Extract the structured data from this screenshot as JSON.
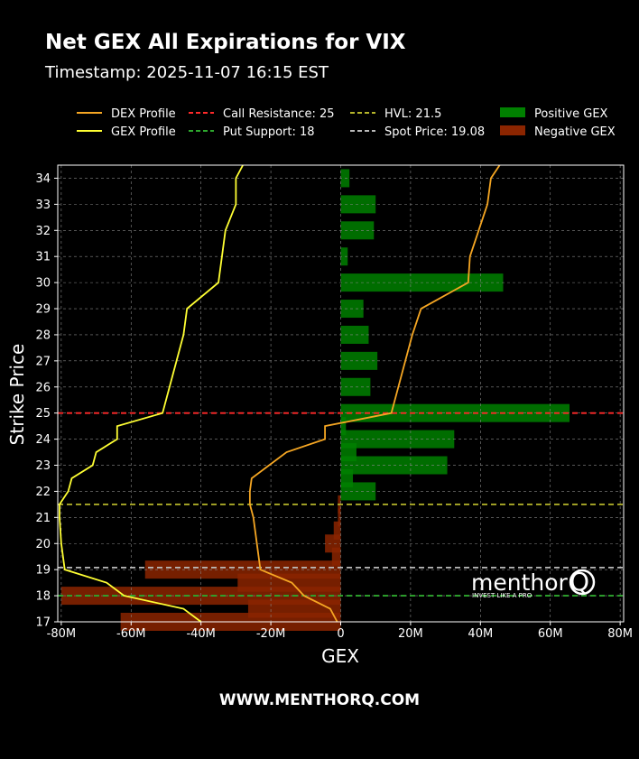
{
  "header": {
    "title": "Net GEX All Expirations for VIX",
    "timestamp": "Timestamp: 2025-11-07 16:15 EST"
  },
  "footer": {
    "url": "WWW.MENTHORQ.COM"
  },
  "logo": {
    "name": "menthor",
    "letter": "Q",
    "tagline": "INVEST LIKE A PRO"
  },
  "colors": {
    "positive": "#008000",
    "negative": "#8b2500",
    "dex": "#f5a623",
    "gex": "#ffff33",
    "call_resistance": "#ff2a2a",
    "put_support": "#2ea82e",
    "hvl": "#b5b52a",
    "spot": "#bbbbbb"
  },
  "chart_data": {
    "type": "bar",
    "orientation": "horizontal",
    "xlabel": "GEX",
    "ylabel": "Strike Price",
    "xlim": [
      -81,
      81
    ],
    "ylim": [
      17,
      34.5
    ],
    "xticks": [
      -80,
      -60,
      -40,
      -20,
      0,
      20,
      40,
      60,
      80
    ],
    "xtick_labels": [
      "-80M",
      "-60M",
      "-40M",
      "-20M",
      "0",
      "20M",
      "40M",
      "60M",
      "80M"
    ],
    "yticks": [
      17,
      18,
      19,
      20,
      21,
      22,
      23,
      24,
      25,
      26,
      27,
      28,
      29,
      30,
      31,
      32,
      33,
      34
    ],
    "grid": true,
    "legend": [
      {
        "label": "DEX Profile",
        "kind": "solid",
        "color": "#f5a623"
      },
      {
        "label": "GEX Profile",
        "kind": "solid",
        "color": "#ffff33"
      },
      {
        "label": "Call Resistance: 25",
        "kind": "dashed",
        "color": "#ff2a2a"
      },
      {
        "label": "Put Support: 18",
        "kind": "dashed",
        "color": "#2ea82e"
      },
      {
        "label": "HVL: 21.5",
        "kind": "dashed",
        "color": "#b5b52a"
      },
      {
        "label": "Spot Price: 19.08",
        "kind": "dashed",
        "color": "#bbbbbb"
      },
      {
        "label": "Positive GEX",
        "kind": "patch",
        "color": "#008000"
      },
      {
        "label": "Negative GEX",
        "kind": "patch",
        "color": "#8b2500"
      }
    ],
    "levels": {
      "call_resistance": 25,
      "put_support": 18,
      "hvl": 21.5,
      "spot": 19.08
    },
    "bars": [
      {
        "strike": 17.0,
        "value": -63
      },
      {
        "strike": 17.5,
        "value": -26.5
      },
      {
        "strike": 18.0,
        "value": -80
      },
      {
        "strike": 18.5,
        "value": -29.5
      },
      {
        "strike": 19.0,
        "value": -56
      },
      {
        "strike": 19.5,
        "value": -2.5
      },
      {
        "strike": 20.0,
        "value": -4.5
      },
      {
        "strike": 20.5,
        "value": -2
      },
      {
        "strike": 21.0,
        "value": -0.8
      },
      {
        "strike": 21.5,
        "value": -0.8
      },
      {
        "strike": 22.0,
        "value": 10
      },
      {
        "strike": 22.5,
        "value": 3.5
      },
      {
        "strike": 23.0,
        "value": 30.5
      },
      {
        "strike": 23.5,
        "value": 4.5
      },
      {
        "strike": 24.0,
        "value": 32.5
      },
      {
        "strike": 24.5,
        "value": 1.5
      },
      {
        "strike": 25.0,
        "value": 65.5
      },
      {
        "strike": 26.0,
        "value": 8.5
      },
      {
        "strike": 27.0,
        "value": 10.5
      },
      {
        "strike": 28.0,
        "value": 8
      },
      {
        "strike": 29.0,
        "value": 6.5
      },
      {
        "strike": 30.0,
        "value": 46.5
      },
      {
        "strike": 31.0,
        "value": 2
      },
      {
        "strike": 32.0,
        "value": 9.5
      },
      {
        "strike": 33.0,
        "value": 10
      },
      {
        "strike": 34.0,
        "value": 2.5
      }
    ],
    "dex_profile": [
      [
        -1,
        17
      ],
      [
        -3,
        17.5
      ],
      [
        -10.5,
        18
      ],
      [
        -14,
        18.5
      ],
      [
        -23,
        19
      ],
      [
        -24,
        20
      ],
      [
        -25,
        21
      ],
      [
        -26,
        21.5
      ],
      [
        -26,
        22
      ],
      [
        -25.5,
        22.5
      ],
      [
        -15.5,
        23.5
      ],
      [
        -4.5,
        24
      ],
      [
        -4.5,
        24.5
      ],
      [
        14.5,
        25
      ],
      [
        20.5,
        28
      ],
      [
        23,
        29
      ],
      [
        36.5,
        30
      ],
      [
        37,
        31
      ],
      [
        39.5,
        32
      ],
      [
        42,
        33
      ],
      [
        43,
        34
      ],
      [
        45.5,
        34.5
      ]
    ],
    "gex_profile": [
      [
        -40,
        17
      ],
      [
        -45,
        17.5
      ],
      [
        -62,
        18
      ],
      [
        -67,
        18.5
      ],
      [
        -79,
        19
      ],
      [
        -80,
        20
      ],
      [
        -80.5,
        21
      ],
      [
        -80.5,
        21.5
      ],
      [
        -78,
        22
      ],
      [
        -77,
        22.5
      ],
      [
        -71,
        23
      ],
      [
        -70,
        23.5
      ],
      [
        -64,
        24
      ],
      [
        -64,
        24.5
      ],
      [
        -51,
        25
      ],
      [
        -49,
        26
      ],
      [
        -47,
        27
      ],
      [
        -45,
        28
      ],
      [
        -44,
        29
      ],
      [
        -35,
        30
      ],
      [
        -34,
        31
      ],
      [
        -33,
        32
      ],
      [
        -30,
        33
      ],
      [
        -30,
        34
      ],
      [
        -28,
        34.5
      ]
    ]
  }
}
